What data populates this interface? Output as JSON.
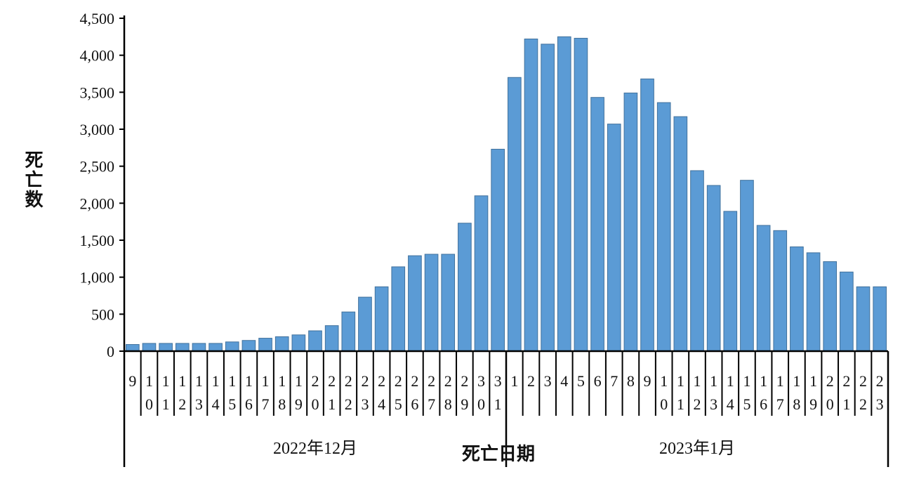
{
  "chart_data": {
    "type": "bar",
    "xlabel": "死亡日期",
    "ylabel": "死亡数",
    "ylim": [
      0,
      4500
    ],
    "yticks": [
      "0",
      "500",
      "1,000",
      "1,500",
      "2,000",
      "2,500",
      "3,000",
      "3,500",
      "4,000",
      "4,500"
    ],
    "grid": false,
    "bar_color": "#5b9bd5",
    "groups": [
      {
        "label": "2022年12月",
        "days": [
          "9",
          "10",
          "11",
          "12",
          "13",
          "14",
          "15",
          "16",
          "17",
          "18",
          "19",
          "20",
          "21",
          "22",
          "23",
          "24",
          "25",
          "26",
          "27",
          "28",
          "29",
          "30",
          "31"
        ],
        "values": [
          90,
          105,
          105,
          105,
          105,
          105,
          125,
          145,
          175,
          195,
          220,
          275,
          345,
          530,
          730,
          870,
          1140,
          1290,
          1310,
          1310,
          1730,
          2100,
          2730
        ]
      },
      {
        "label": "2023年1月",
        "days": [
          "1",
          "2",
          "3",
          "4",
          "5",
          "6",
          "7",
          "8",
          "9",
          "10",
          "11",
          "12",
          "13",
          "14",
          "15",
          "16",
          "17",
          "18",
          "19",
          "20",
          "21",
          "22",
          "23"
        ],
        "values": [
          3700,
          4220,
          4150,
          4250,
          4230,
          3430,
          3070,
          3490,
          3680,
          3360,
          3170,
          2440,
          2240,
          1890,
          2310,
          1700,
          1630,
          1410,
          1330,
          1210,
          1070,
          870,
          870
        ]
      }
    ]
  }
}
